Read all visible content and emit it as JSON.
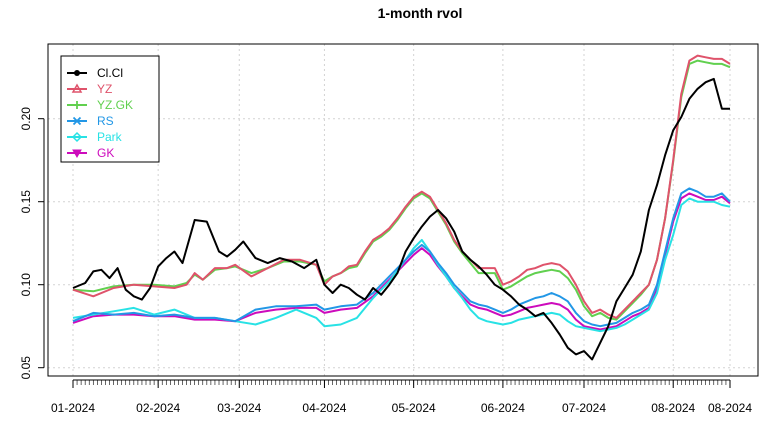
{
  "chart_data": {
    "type": "line",
    "title": "1-month rvol",
    "xlabel": "",
    "ylabel": "",
    "ylim": [
      0.045,
      0.245
    ],
    "y_ticks": [
      0.05,
      0.1,
      0.15,
      0.2
    ],
    "y_tick_labels": [
      "0.05",
      "0.10",
      "0.15",
      "0.20"
    ],
    "x_tick_labels": [
      "01-2024",
      "02-2024",
      "03-2024",
      "04-2024",
      "05-2024",
      "06-2024",
      "07-2024",
      "08-2024",
      "08-2024"
    ],
    "x_tick_positions": [
      0,
      21,
      41,
      62,
      84,
      106,
      126,
      148,
      162
    ],
    "n_days": 163,
    "grid": true,
    "legend_position": "top-left",
    "series": [
      {
        "name": "Cl.Cl",
        "color": "#000000",
        "marker": "circle",
        "x": [
          0,
          3,
          5,
          7,
          9,
          11,
          13,
          15,
          17,
          19,
          21,
          23,
          25,
          27,
          30,
          33,
          36,
          38,
          40,
          42,
          45,
          48,
          51,
          54,
          57,
          60,
          62,
          64,
          66,
          68,
          70,
          72,
          74,
          76,
          78,
          80,
          82,
          84,
          86,
          88,
          90,
          92,
          94,
          96,
          98,
          100,
          102,
          104,
          106,
          108,
          110,
          112,
          114,
          116,
          118,
          120,
          122,
          124,
          126,
          128,
          130,
          132,
          134,
          136,
          138,
          140,
          142,
          144,
          146,
          148,
          150,
          152,
          154,
          156,
          158,
          160,
          162
        ],
        "values": [
          0.098,
          0.101,
          0.108,
          0.109,
          0.104,
          0.11,
          0.097,
          0.093,
          0.091,
          0.098,
          0.111,
          0.116,
          0.12,
          0.113,
          0.139,
          0.138,
          0.12,
          0.117,
          0.121,
          0.126,
          0.116,
          0.113,
          0.116,
          0.114,
          0.11,
          0.115,
          0.1,
          0.095,
          0.1,
          0.098,
          0.094,
          0.091,
          0.098,
          0.094,
          0.1,
          0.107,
          0.12,
          0.128,
          0.135,
          0.141,
          0.145,
          0.14,
          0.132,
          0.12,
          0.115,
          0.111,
          0.106,
          0.1,
          0.097,
          0.093,
          0.088,
          0.085,
          0.081,
          0.083,
          0.077,
          0.07,
          0.062,
          0.058,
          0.06,
          0.055,
          0.065,
          0.075,
          0.09,
          0.098,
          0.106,
          0.12,
          0.145,
          0.16,
          0.178,
          0.193,
          0.201,
          0.212,
          0.218,
          0.222,
          0.224,
          0.206,
          0.206
        ]
      },
      {
        "name": "YZ",
        "color": "#DF536B",
        "marker": "triangle",
        "x": [
          0,
          5,
          10,
          15,
          20,
          25,
          28,
          30,
          32,
          35,
          38,
          40,
          44,
          48,
          52,
          56,
          60,
          62,
          64,
          66,
          68,
          70,
          72,
          74,
          76,
          78,
          80,
          82,
          84,
          86,
          88,
          90,
          92,
          94,
          96,
          98,
          100,
          102,
          104,
          106,
          108,
          110,
          112,
          114,
          116,
          118,
          120,
          122,
          124,
          126,
          128,
          130,
          132,
          134,
          136,
          138,
          140,
          142,
          144,
          146,
          148,
          150,
          152,
          154,
          156,
          158,
          160,
          162
        ],
        "values": [
          0.097,
          0.093,
          0.098,
          0.1,
          0.099,
          0.098,
          0.1,
          0.107,
          0.103,
          0.11,
          0.11,
          0.112,
          0.105,
          0.11,
          0.115,
          0.115,
          0.112,
          0.1,
          0.105,
          0.107,
          0.111,
          0.112,
          0.12,
          0.127,
          0.13,
          0.134,
          0.14,
          0.147,
          0.153,
          0.156,
          0.153,
          0.145,
          0.137,
          0.127,
          0.12,
          0.115,
          0.11,
          0.11,
          0.11,
          0.1,
          0.102,
          0.105,
          0.109,
          0.11,
          0.112,
          0.113,
          0.112,
          0.108,
          0.1,
          0.09,
          0.083,
          0.085,
          0.082,
          0.08,
          0.085,
          0.09,
          0.095,
          0.1,
          0.115,
          0.14,
          0.175,
          0.215,
          0.235,
          0.238,
          0.237,
          0.236,
          0.236,
          0.233
        ]
      },
      {
        "name": "YZ.GK",
        "color": "#61D04F",
        "marker": "plus",
        "x": [
          0,
          5,
          10,
          15,
          20,
          25,
          28,
          30,
          32,
          35,
          38,
          40,
          44,
          48,
          52,
          56,
          60,
          62,
          64,
          66,
          68,
          70,
          72,
          74,
          76,
          78,
          80,
          82,
          84,
          86,
          88,
          90,
          92,
          94,
          96,
          98,
          100,
          102,
          104,
          106,
          108,
          110,
          112,
          114,
          116,
          118,
          120,
          122,
          124,
          126,
          128,
          130,
          132,
          134,
          136,
          138,
          140,
          142,
          144,
          146,
          148,
          150,
          152,
          154,
          156,
          158,
          160,
          162
        ],
        "values": [
          0.097,
          0.096,
          0.099,
          0.1,
          0.1,
          0.099,
          0.101,
          0.106,
          0.103,
          0.109,
          0.11,
          0.111,
          0.107,
          0.11,
          0.114,
          0.114,
          0.112,
          0.102,
          0.105,
          0.107,
          0.11,
          0.111,
          0.119,
          0.126,
          0.129,
          0.133,
          0.139,
          0.146,
          0.152,
          0.155,
          0.152,
          0.144,
          0.136,
          0.126,
          0.119,
          0.113,
          0.107,
          0.107,
          0.107,
          0.097,
          0.099,
          0.102,
          0.105,
          0.107,
          0.108,
          0.109,
          0.108,
          0.104,
          0.097,
          0.087,
          0.081,
          0.083,
          0.08,
          0.079,
          0.084,
          0.089,
          0.094,
          0.1,
          0.115,
          0.14,
          0.174,
          0.213,
          0.233,
          0.235,
          0.234,
          0.233,
          0.233,
          0.231
        ]
      },
      {
        "name": "RS",
        "color": "#2297E6",
        "marker": "cross",
        "x": [
          0,
          5,
          10,
          15,
          20,
          25,
          30,
          35,
          40,
          45,
          50,
          55,
          60,
          62,
          66,
          70,
          74,
          78,
          82,
          84,
          86,
          88,
          90,
          92,
          94,
          96,
          98,
          100,
          102,
          104,
          106,
          108,
          110,
          112,
          114,
          116,
          118,
          120,
          122,
          124,
          126,
          128,
          130,
          132,
          134,
          136,
          138,
          140,
          142,
          144,
          146,
          148,
          150,
          152,
          154,
          156,
          158,
          160,
          162
        ],
        "values": [
          0.078,
          0.083,
          0.082,
          0.083,
          0.081,
          0.082,
          0.08,
          0.08,
          0.078,
          0.085,
          0.087,
          0.087,
          0.088,
          0.085,
          0.087,
          0.088,
          0.095,
          0.105,
          0.115,
          0.12,
          0.124,
          0.12,
          0.113,
          0.107,
          0.1,
          0.095,
          0.09,
          0.088,
          0.087,
          0.085,
          0.083,
          0.085,
          0.088,
          0.09,
          0.092,
          0.093,
          0.095,
          0.093,
          0.09,
          0.083,
          0.078,
          0.076,
          0.075,
          0.076,
          0.077,
          0.08,
          0.083,
          0.085,
          0.088,
          0.1,
          0.12,
          0.14,
          0.155,
          0.158,
          0.156,
          0.153,
          0.153,
          0.155,
          0.15
        ]
      },
      {
        "name": "Park",
        "color": "#28E2E5",
        "marker": "diamond",
        "x": [
          0,
          5,
          10,
          15,
          20,
          25,
          30,
          35,
          40,
          45,
          50,
          55,
          60,
          62,
          66,
          70,
          74,
          78,
          82,
          84,
          86,
          88,
          90,
          92,
          94,
          96,
          98,
          100,
          102,
          104,
          106,
          108,
          110,
          112,
          114,
          116,
          118,
          120,
          122,
          124,
          126,
          128,
          130,
          132,
          134,
          136,
          138,
          140,
          142,
          144,
          146,
          148,
          150,
          152,
          154,
          156,
          158,
          160,
          162
        ],
        "values": [
          0.08,
          0.082,
          0.084,
          0.086,
          0.082,
          0.085,
          0.08,
          0.08,
          0.078,
          0.076,
          0.08,
          0.085,
          0.08,
          0.075,
          0.076,
          0.08,
          0.092,
          0.102,
          0.115,
          0.122,
          0.127,
          0.12,
          0.112,
          0.105,
          0.098,
          0.092,
          0.085,
          0.08,
          0.078,
          0.077,
          0.076,
          0.077,
          0.079,
          0.08,
          0.081,
          0.082,
          0.083,
          0.082,
          0.078,
          0.075,
          0.074,
          0.073,
          0.072,
          0.073,
          0.074,
          0.076,
          0.079,
          0.082,
          0.085,
          0.095,
          0.115,
          0.13,
          0.148,
          0.152,
          0.15,
          0.15,
          0.15,
          0.148,
          0.147
        ]
      },
      {
        "name": "GK",
        "color": "#CD0BBC",
        "marker": "triangle-down",
        "x": [
          0,
          5,
          10,
          15,
          20,
          25,
          30,
          35,
          40,
          45,
          50,
          55,
          60,
          62,
          66,
          70,
          74,
          78,
          82,
          84,
          86,
          88,
          90,
          92,
          94,
          96,
          98,
          100,
          102,
          104,
          106,
          108,
          110,
          112,
          114,
          116,
          118,
          120,
          122,
          124,
          126,
          128,
          130,
          132,
          134,
          136,
          138,
          140,
          142,
          144,
          146,
          148,
          150,
          152,
          154,
          156,
          158,
          160,
          162
        ],
        "values": [
          0.077,
          0.081,
          0.082,
          0.082,
          0.081,
          0.081,
          0.079,
          0.079,
          0.078,
          0.083,
          0.085,
          0.086,
          0.086,
          0.083,
          0.085,
          0.086,
          0.093,
          0.103,
          0.113,
          0.118,
          0.122,
          0.118,
          0.111,
          0.105,
          0.098,
          0.093,
          0.088,
          0.086,
          0.085,
          0.083,
          0.081,
          0.082,
          0.084,
          0.086,
          0.087,
          0.088,
          0.089,
          0.088,
          0.085,
          0.079,
          0.075,
          0.074,
          0.073,
          0.074,
          0.075,
          0.078,
          0.081,
          0.083,
          0.086,
          0.098,
          0.118,
          0.138,
          0.152,
          0.155,
          0.153,
          0.151,
          0.151,
          0.153,
          0.149
        ]
      }
    ]
  }
}
